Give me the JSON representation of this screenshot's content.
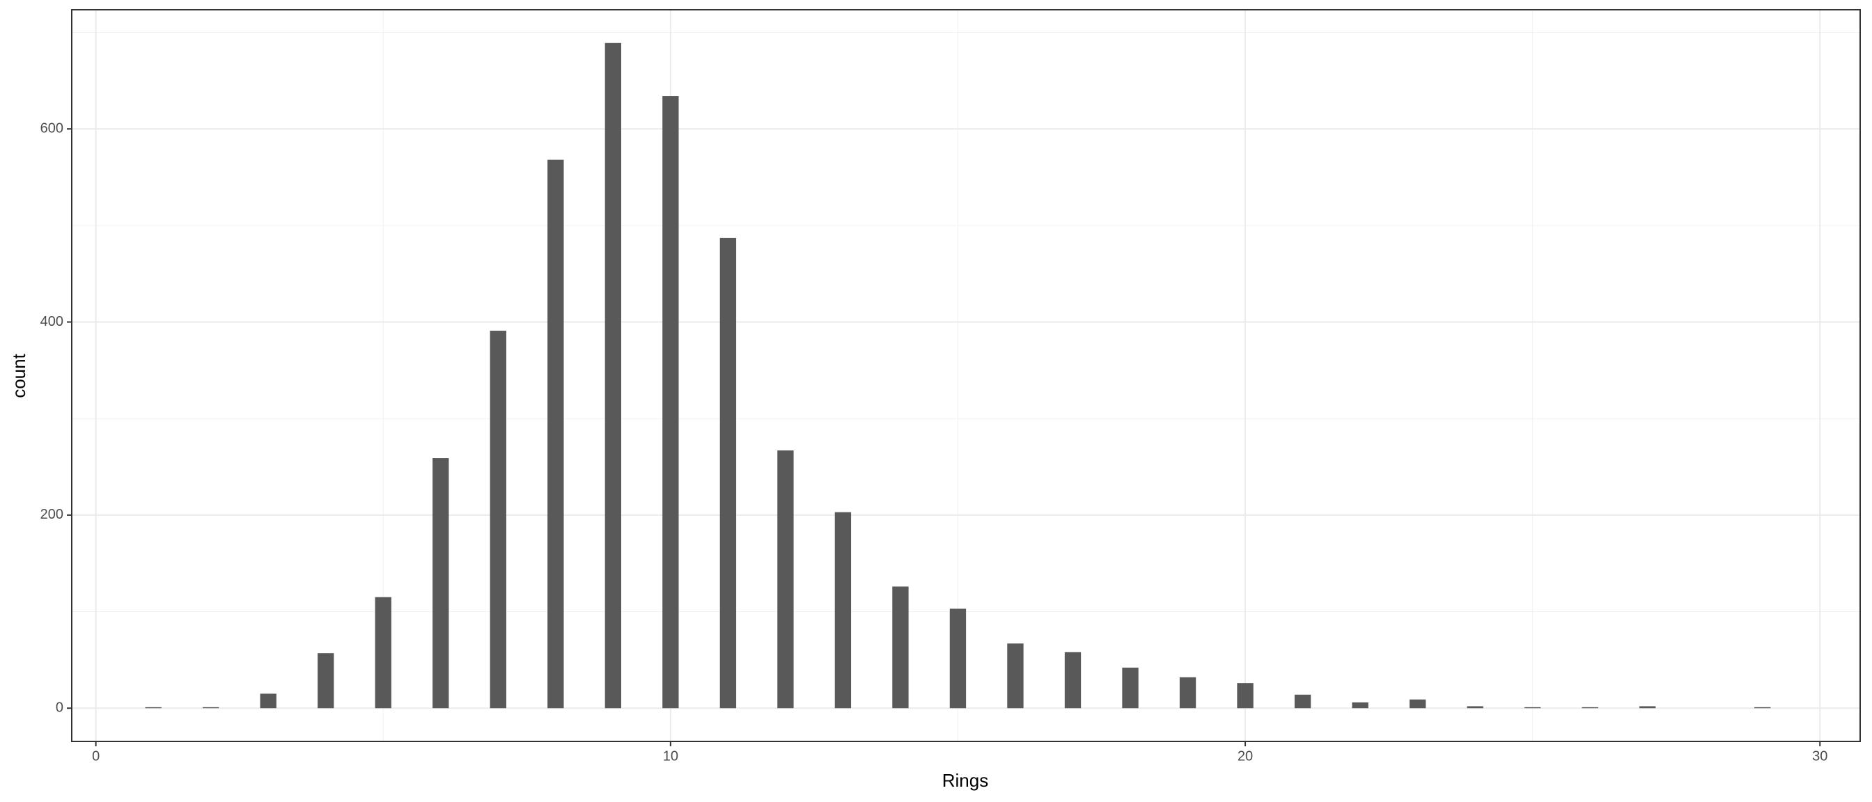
{
  "chart_data": {
    "type": "bar",
    "x_label": "Rings",
    "y_label": "count",
    "x": [
      1,
      2,
      3,
      4,
      5,
      6,
      7,
      8,
      9,
      10,
      11,
      12,
      13,
      14,
      15,
      16,
      17,
      18,
      19,
      20,
      21,
      22,
      23,
      24,
      25,
      26,
      27,
      29
    ],
    "values": [
      1,
      1,
      15,
      57,
      115,
      259,
      391,
      568,
      689,
      634,
      487,
      267,
      203,
      126,
      103,
      67,
      58,
      42,
      32,
      26,
      14,
      6,
      9,
      2,
      1,
      1,
      2,
      1
    ],
    "color": "#595959",
    "xlim": [
      -0.42,
      30.7
    ],
    "xticks": [
      0,
      10,
      20,
      30
    ],
    "minor_xticks": [
      5,
      15,
      25
    ],
    "ylim": [
      -34.45,
      723.45
    ],
    "yticks": [
      0,
      200,
      400,
      600
    ],
    "minor_yticks": [
      100,
      300,
      500,
      700
    ],
    "grid": true
  }
}
